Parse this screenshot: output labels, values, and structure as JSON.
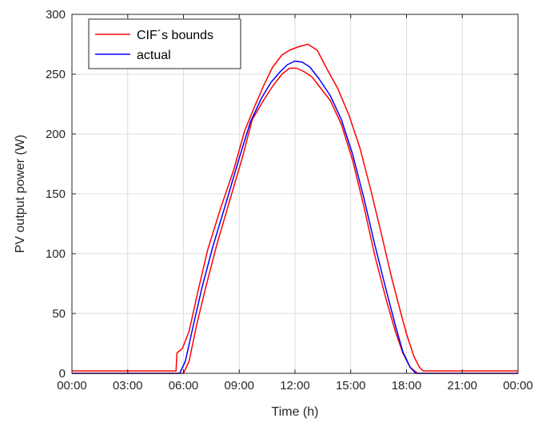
{
  "chart_data": {
    "type": "line",
    "title": "",
    "xlabel": "Time (h)",
    "ylabel": "PV output power (W)",
    "xlim": [
      0,
      24
    ],
    "ylim": [
      0,
      300
    ],
    "x_ticks": [
      0,
      3,
      6,
      9,
      12,
      15,
      18,
      21,
      24
    ],
    "x_tick_labels": [
      "00:00",
      "03:00",
      "06:00",
      "09:00",
      "12:00",
      "15:00",
      "18:00",
      "21:00",
      "00:00"
    ],
    "y_ticks": [
      0,
      50,
      100,
      150,
      200,
      250,
      300
    ],
    "y_tick_labels": [
      "0",
      "50",
      "100",
      "150",
      "200",
      "250",
      "300"
    ],
    "grid": true,
    "legend_position": "top-left",
    "series": [
      {
        "name": "CIF´s bounds",
        "color": "#ff0000",
        "x": [
          0,
          5.6,
          5.65,
          5.95,
          6.3,
          6.8,
          7.3,
          8.0,
          8.7,
          9.3,
          9.8,
          10.3,
          10.8,
          11.3,
          11.7,
          12.2,
          12.7,
          13.2,
          13.7,
          14.3,
          14.9,
          15.5,
          16.1,
          16.7,
          17.2,
          17.6,
          18.0,
          18.4,
          18.7,
          18.9,
          24
        ],
        "values": [
          2,
          2,
          17,
          21,
          35,
          70,
          103,
          138,
          170,
          203,
          222,
          240,
          256,
          266,
          270,
          273,
          275,
          270,
          255,
          238,
          216,
          188,
          152,
          113,
          80,
          56,
          33,
          14,
          5,
          2,
          2
        ]
      },
      {
        "name": "",
        "color": "#ff0000",
        "x": [
          0,
          6.0,
          6.3,
          6.7,
          7.2,
          7.8,
          8.5,
          9.2,
          9.7,
          10.3,
          10.8,
          11.3,
          11.7,
          12.1,
          12.5,
          12.9,
          13.3,
          13.9,
          14.5,
          15.1,
          15.7,
          16.3,
          16.9,
          17.4,
          17.8,
          18.2,
          18.6,
          24
        ],
        "values": [
          0,
          0,
          10,
          40,
          72,
          108,
          145,
          182,
          212,
          228,
          240,
          250,
          255,
          255,
          252,
          248,
          240,
          228,
          208,
          178,
          140,
          98,
          62,
          35,
          17,
          5,
          0,
          0
        ]
      },
      {
        "name": "actual",
        "color": "#0000ff",
        "x": [
          0,
          5.8,
          6.1,
          6.5,
          7.0,
          7.6,
          8.3,
          9.0,
          9.6,
          10.2,
          10.7,
          11.2,
          11.6,
          12.0,
          12.4,
          12.8,
          13.3,
          13.9,
          14.5,
          15.1,
          15.7,
          16.3,
          16.9,
          17.4,
          17.8,
          18.2,
          18.5,
          18.65,
          24
        ],
        "values": [
          0,
          0,
          10,
          38,
          72,
          107,
          143,
          180,
          210,
          230,
          243,
          252,
          258,
          261,
          260,
          256,
          246,
          232,
          212,
          183,
          147,
          107,
          70,
          40,
          18,
          5,
          0,
          0,
          0
        ]
      }
    ]
  }
}
